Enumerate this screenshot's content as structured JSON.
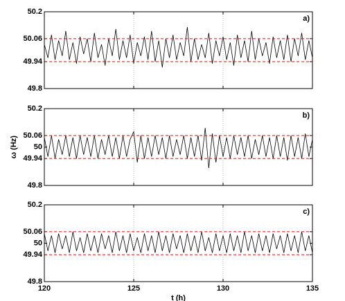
{
  "chart_data": [
    {
      "type": "line",
      "label": "a)",
      "x": [
        120,
        120.2,
        120.4,
        120.6,
        120.8,
        121,
        121.2,
        121.4,
        121.6,
        121.8,
        122,
        122.2,
        122.4,
        122.6,
        122.8,
        123,
        123.2,
        123.4,
        123.6,
        123.8,
        124,
        124.2,
        124.4,
        124.6,
        124.8,
        125,
        125.2,
        125.4,
        125.6,
        125.8,
        126,
        126.2,
        126.4,
        126.6,
        126.8,
        127,
        127.2,
        127.4,
        127.6,
        127.8,
        128,
        128.2,
        128.4,
        128.6,
        128.8,
        129,
        129.2,
        129.4,
        129.6,
        129.8,
        130,
        130.2,
        130.4,
        130.6,
        130.8,
        131,
        131.2,
        131.4,
        131.6,
        131.8,
        132,
        132.2,
        132.4,
        132.6,
        132.8,
        133,
        133.2,
        133.4,
        133.6,
        133.8,
        134,
        134.2,
        134.4,
        134.6,
        134.8,
        135
      ],
      "series": [
        {
          "color": "#000000",
          "values": [
            50.03,
            49.96,
            50.08,
            49.95,
            50.05,
            49.97,
            50.1,
            49.95,
            50.04,
            49.93,
            50.07,
            49.98,
            50.06,
            49.94,
            50.09,
            49.96,
            50.03,
            49.92,
            50.06,
            49.97,
            50.11,
            49.95,
            50.05,
            49.96,
            50.08,
            49.93,
            50.04,
            49.97,
            50.07,
            49.95,
            50.1,
            49.94,
            50.05,
            49.91,
            50.06,
            49.96,
            50.08,
            49.95,
            50.04,
            49.97,
            50.12,
            49.94,
            50.06,
            49.95,
            50.03,
            49.96,
            50.09,
            49.93,
            50.05,
            49.97,
            50.07,
            49.95,
            50.04,
            49.92,
            50.08,
            49.96,
            50.05,
            49.94,
            50.1,
            49.95,
            50.06,
            49.97,
            50.04,
            49.93,
            50.07,
            49.96,
            50.05,
            49.95,
            50.08,
            49.94,
            50.06,
            49.97,
            50.09,
            49.95,
            50.05,
            49.96
          ]
        }
      ],
      "xlim": [
        120,
        135
      ],
      "xticks": [
        120,
        125,
        130,
        135
      ],
      "ylim": [
        49.8,
        50.2
      ],
      "yticks": [
        49.8,
        49.94,
        50.06,
        50.2
      ],
      "hlines": [
        50.06,
        49.94
      ],
      "hline_color": "#ff0000",
      "grid": "x"
    },
    {
      "type": "line",
      "label": "b)",
      "ylabel": "ω (Hz)",
      "x": [
        120,
        120.2,
        120.4,
        120.6,
        120.8,
        121,
        121.2,
        121.4,
        121.6,
        121.8,
        122,
        122.2,
        122.4,
        122.6,
        122.8,
        123,
        123.2,
        123.4,
        123.6,
        123.8,
        124,
        124.2,
        124.4,
        124.6,
        124.8,
        125,
        125.2,
        125.4,
        125.6,
        125.8,
        126,
        126.2,
        126.4,
        126.6,
        126.8,
        127,
        127.2,
        127.4,
        127.6,
        127.8,
        128,
        128.2,
        128.4,
        128.6,
        128.8,
        129,
        129.2,
        129.4,
        129.6,
        129.8,
        130,
        130.2,
        130.4,
        130.6,
        130.8,
        131,
        131.2,
        131.4,
        131.6,
        131.8,
        132,
        132.2,
        132.4,
        132.6,
        132.8,
        133,
        133.2,
        133.4,
        133.6,
        133.8,
        134,
        134.2,
        134.4,
        134.6,
        134.8,
        135
      ],
      "series": [
        {
          "color": "#000000",
          "values": [
            50.05,
            49.95,
            50.06,
            49.94,
            50.04,
            49.96,
            50.06,
            49.95,
            50.05,
            49.94,
            50.06,
            49.96,
            50.05,
            49.95,
            50.06,
            49.94,
            50.04,
            49.96,
            50.06,
            49.95,
            50.05,
            49.94,
            50.06,
            49.95,
            50.04,
            50.08,
            49.92,
            50.06,
            49.94,
            50.05,
            49.95,
            50.06,
            49.96,
            50.05,
            49.94,
            50.06,
            49.95,
            50.04,
            49.96,
            50.06,
            49.94,
            50.05,
            49.95,
            50.06,
            49.93,
            50.1,
            49.89,
            50.07,
            49.92,
            50.06,
            49.95,
            50.05,
            49.94,
            50.06,
            49.96,
            50.05,
            49.95,
            50.06,
            49.94,
            50.04,
            49.96,
            50.06,
            49.95,
            50.05,
            49.94,
            50.06,
            49.95,
            50.05,
            49.93,
            50.06,
            49.95,
            50.05,
            49.94,
            50.07,
            49.95,
            50.04
          ]
        }
      ],
      "xlim": [
        120,
        135
      ],
      "xticks": [
        120,
        125,
        130,
        135
      ],
      "ylim": [
        49.8,
        50.2
      ],
      "yticks": [
        49.8,
        49.94,
        50,
        50.06,
        50.2
      ],
      "hlines": [
        50.06,
        49.94
      ],
      "hline_color": "#ff0000",
      "grid": "x"
    },
    {
      "type": "line",
      "label": "c)",
      "xlabel": "t (h)",
      "x": [
        120,
        120.2,
        120.4,
        120.6,
        120.8,
        121,
        121.2,
        121.4,
        121.6,
        121.8,
        122,
        122.2,
        122.4,
        122.6,
        122.8,
        123,
        123.2,
        123.4,
        123.6,
        123.8,
        124,
        124.2,
        124.4,
        124.6,
        124.8,
        125,
        125.2,
        125.4,
        125.6,
        125.8,
        126,
        126.2,
        126.4,
        126.6,
        126.8,
        127,
        127.2,
        127.4,
        127.6,
        127.8,
        128,
        128.2,
        128.4,
        128.6,
        128.8,
        129,
        129.2,
        129.4,
        129.6,
        129.8,
        130,
        130.2,
        130.4,
        130.6,
        130.8,
        131,
        131.2,
        131.4,
        131.6,
        131.8,
        132,
        132.2,
        132.4,
        132.6,
        132.8,
        133,
        133.2,
        133.4,
        133.6,
        133.8,
        134,
        134.2,
        134.4,
        134.6,
        134.8,
        135
      ],
      "series": [
        {
          "color": "#000000",
          "values": [
            50.05,
            49.96,
            50.04,
            49.95,
            50.05,
            49.97,
            50.04,
            49.95,
            50.06,
            49.96,
            50.03,
            49.95,
            50.05,
            49.96,
            50.04,
            49.95,
            50.05,
            49.97,
            50.04,
            49.95,
            50.06,
            49.96,
            50.04,
            49.95,
            50.05,
            49.96,
            50.03,
            49.95,
            50.05,
            49.96,
            50.04,
            49.95,
            50.06,
            49.96,
            50.04,
            49.95,
            50.05,
            49.97,
            50.04,
            49.95,
            50.05,
            49.96,
            50.04,
            49.95,
            50.06,
            49.96,
            50.03,
            49.95,
            50.05,
            49.96,
            50.04,
            49.95,
            50.05,
            49.96,
            50.04,
            49.95,
            50.06,
            49.96,
            50.04,
            49.95,
            50.05,
            49.96,
            50.04,
            49.95,
            50.05,
            49.97,
            50.04,
            49.95,
            50.05,
            49.96,
            50.04,
            49.95,
            50.06,
            49.96,
            50.04,
            49.95
          ]
        }
      ],
      "xlim": [
        120,
        135
      ],
      "xticks": [
        120,
        125,
        130,
        135
      ],
      "ylim": [
        49.8,
        50.2
      ],
      "yticks": [
        49.8,
        49.94,
        50,
        50.06,
        50.2
      ],
      "hlines": [
        50.06,
        49.94
      ],
      "hline_color": "#ff0000",
      "grid": "x"
    }
  ]
}
